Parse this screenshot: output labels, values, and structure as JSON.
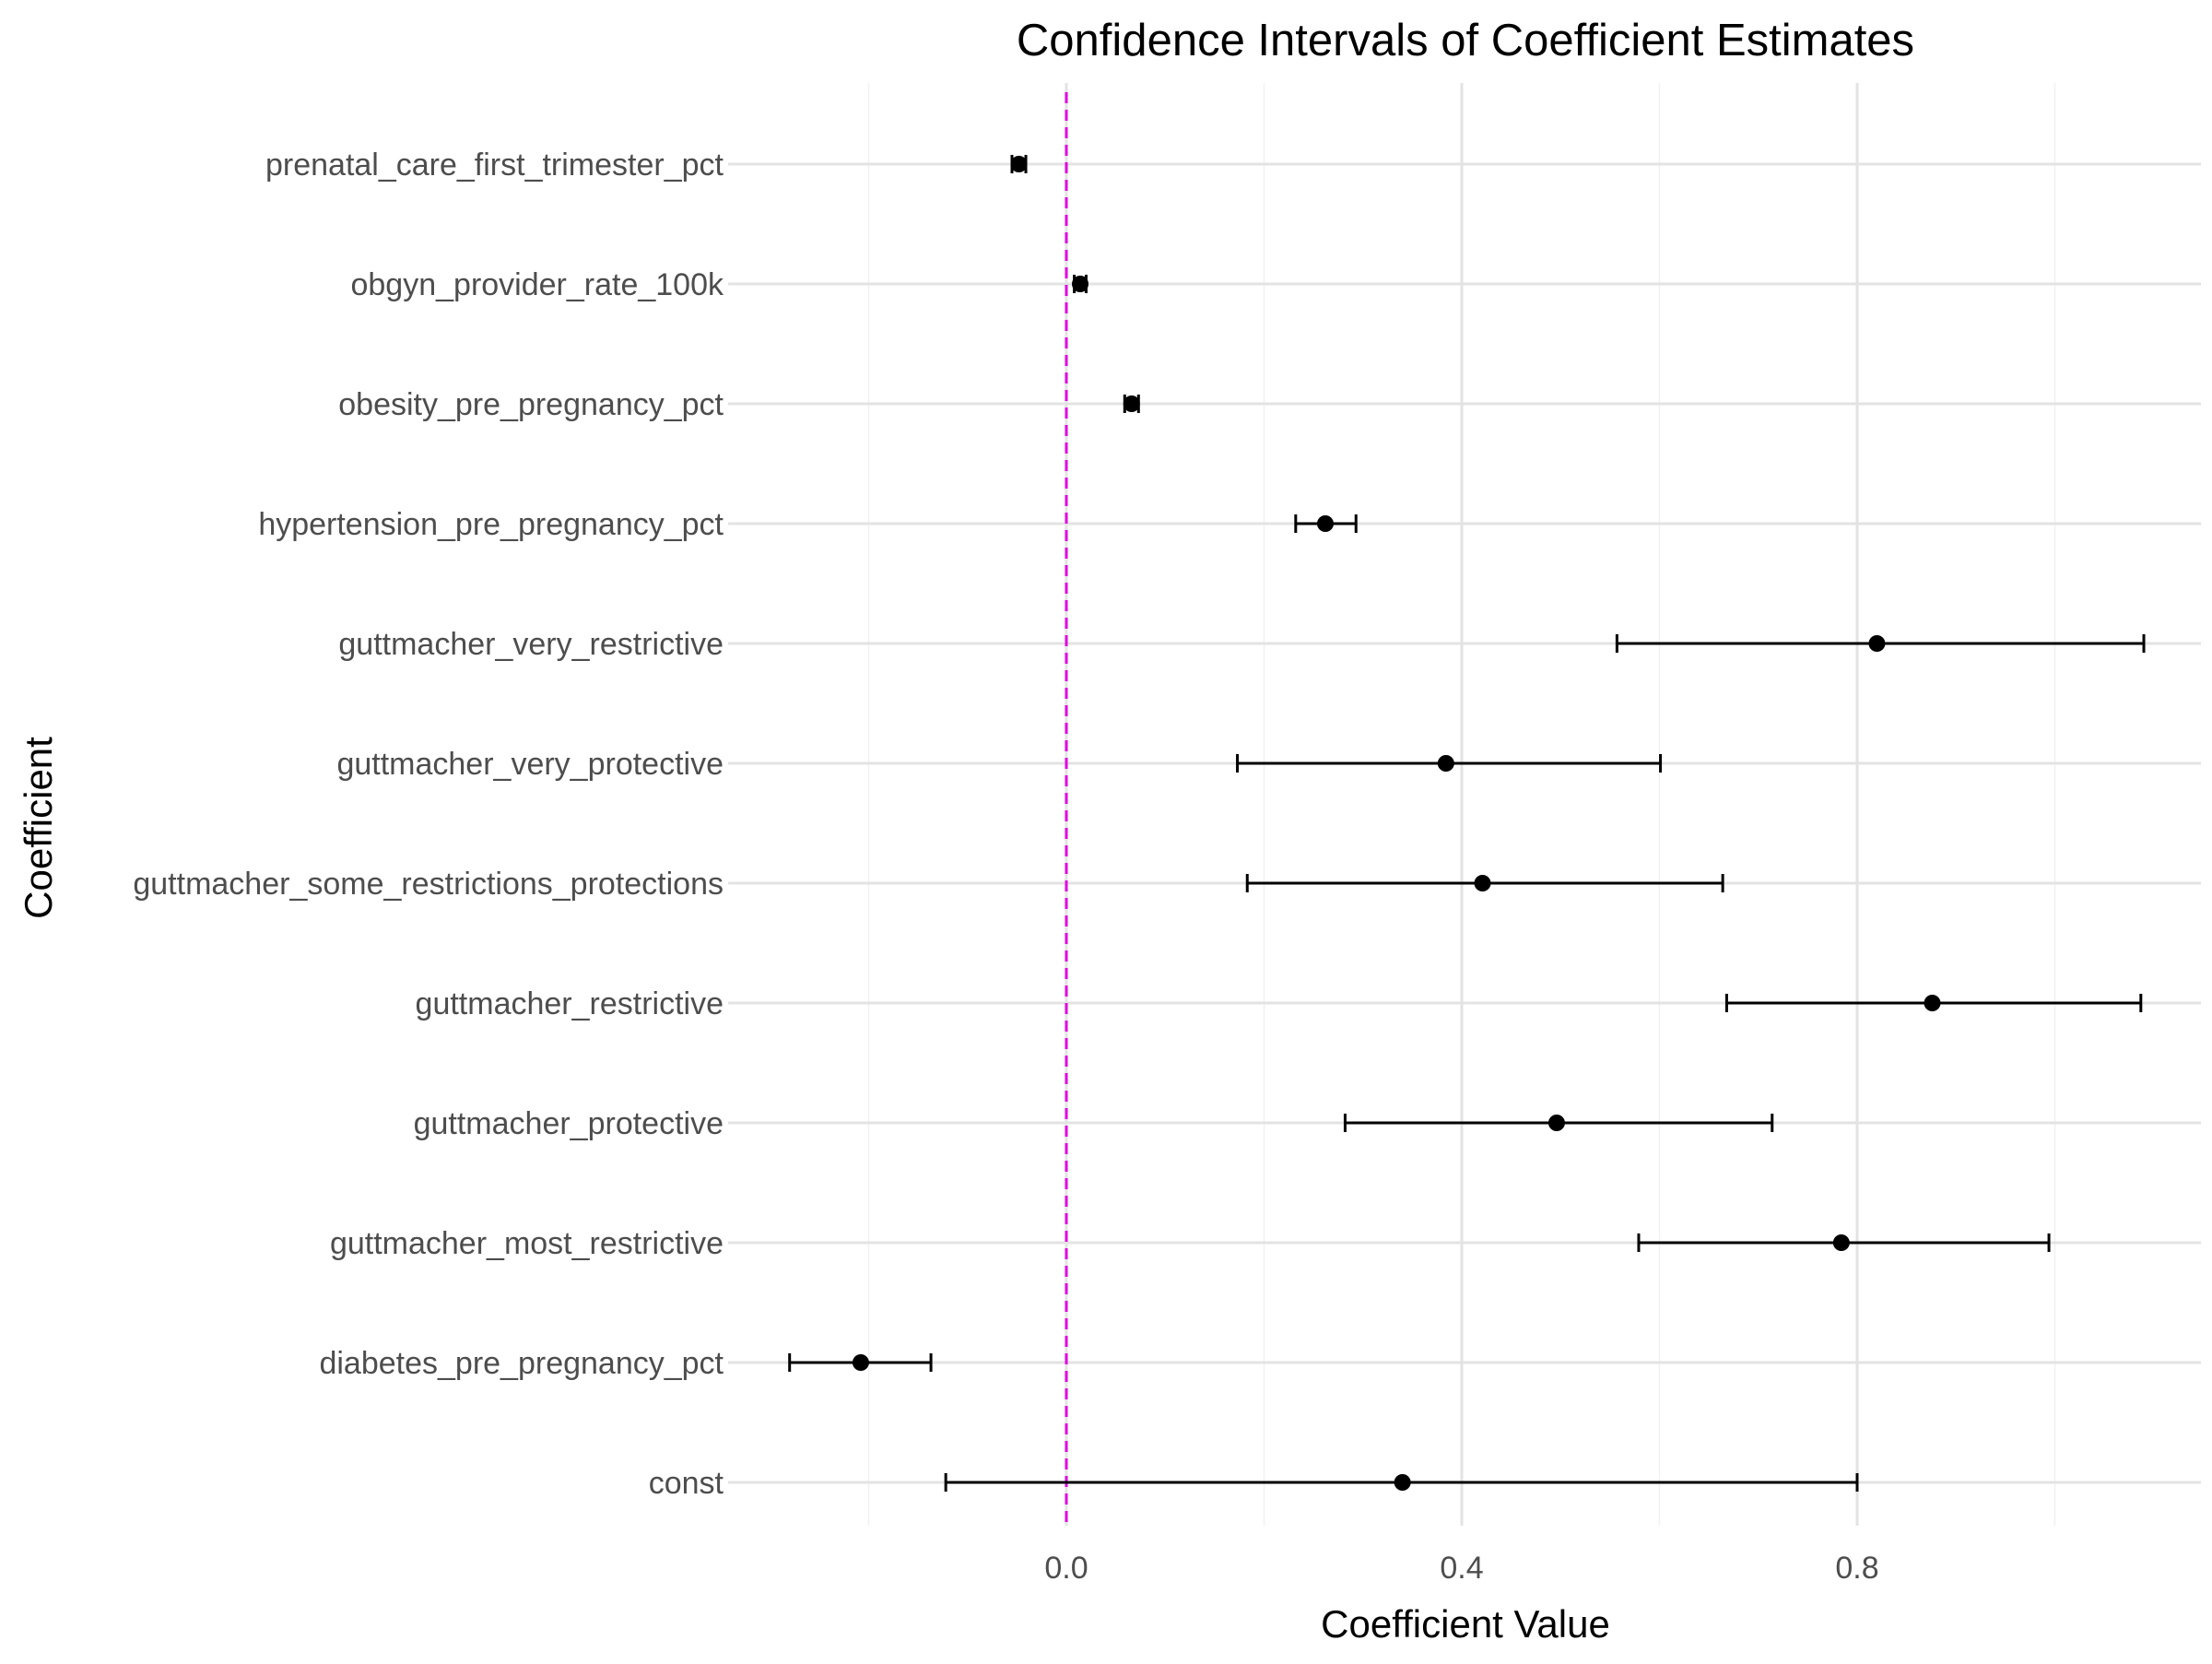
{
  "chart_data": {
    "type": "errorbar",
    "title": "Confidence Intervals of Coefficient Estimates",
    "xlabel": "Coefficient Value",
    "ylabel": "Coefficient",
    "xlim": [
      -0.35,
      1.15
    ],
    "x_ticks": [
      0.0,
      0.4,
      0.8
    ],
    "x_tick_labels": [
      "0.0",
      "0.4",
      "0.8"
    ],
    "grid": true,
    "reference_line": {
      "x": 0.0,
      "style": "dashed",
      "color": "#e100e1"
    },
    "point_color": "#000000",
    "categories": [
      "prenatal_care_first_trimester_pct",
      "obgyn_provider_rate_100k",
      "obesity_pre_pregnancy_pct",
      "hypertension_pre_pregnancy_pct",
      "guttmacher_very_restrictive",
      "guttmacher_very_protective",
      "guttmacher_some_restrictions_protections",
      "guttmacher_restrictive",
      "guttmacher_protective",
      "guttmacher_most_restrictive",
      "diabetes_pre_pregnancy_pct",
      "const"
    ],
    "estimates": [
      -0.048,
      0.014,
      0.066,
      0.262,
      0.82,
      0.384,
      0.421,
      0.876,
      0.496,
      0.784,
      -0.208,
      0.34
    ],
    "lower": [
      -0.055,
      0.008,
      0.059,
      0.232,
      0.557,
      0.173,
      0.183,
      0.668,
      0.282,
      0.579,
      -0.28,
      -0.122
    ],
    "upper": [
      -0.041,
      0.02,
      0.073,
      0.293,
      1.09,
      0.601,
      0.664,
      1.087,
      0.714,
      0.994,
      -0.137,
      0.8
    ]
  }
}
